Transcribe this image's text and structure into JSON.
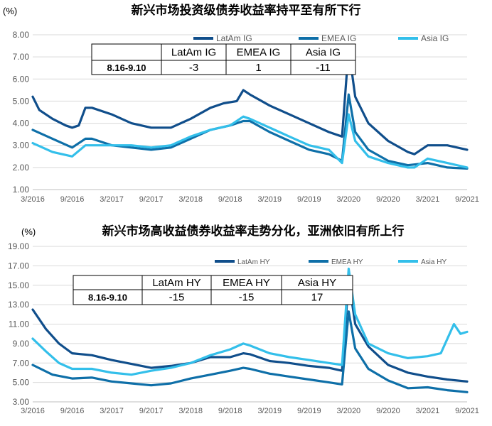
{
  "chart_data": [
    {
      "type": "line",
      "title": "新兴市场投资级债券收益率持平至有所下行",
      "unit_label": "(%)",
      "ylim": [
        1.0,
        8.0
      ],
      "yticks": [
        "8.00",
        "7.00",
        "6.00",
        "5.00",
        "4.00",
        "3.00",
        "2.00",
        "1.00"
      ],
      "xlim": [
        "2016-03",
        "2021-09"
      ],
      "xticks": [
        "3/2016",
        "9/2016",
        "3/2017",
        "9/2017",
        "3/2018",
        "9/2018",
        "3/2019",
        "9/2019",
        "3/2020",
        "9/2020",
        "3/2021",
        "9/2021"
      ],
      "grid": "horizontal",
      "legend": "top-right",
      "series": [
        {
          "name": "LatAm IG",
          "color": "#104E8B",
          "points": [
            [
              "2016-03",
              5.2
            ],
            [
              "2016-04",
              4.6
            ],
            [
              "2016-06",
              4.2
            ],
            [
              "2016-08",
              3.9
            ],
            [
              "2016-09",
              3.8
            ],
            [
              "2016-10",
              3.9
            ],
            [
              "2016-11",
              4.7
            ],
            [
              "2016-12",
              4.7
            ],
            [
              "2017-03",
              4.4
            ],
            [
              "2017-06",
              4.0
            ],
            [
              "2017-09",
              3.8
            ],
            [
              "2017-12",
              3.8
            ],
            [
              "2018-03",
              4.2
            ],
            [
              "2018-06",
              4.7
            ],
            [
              "2018-08",
              4.9
            ],
            [
              "2018-10",
              5.0
            ],
            [
              "2018-11",
              5.5
            ],
            [
              "2018-12",
              5.3
            ],
            [
              "2019-03",
              4.8
            ],
            [
              "2019-06",
              4.4
            ],
            [
              "2019-09",
              4.0
            ],
            [
              "2019-12",
              3.6
            ],
            [
              "2020-02",
              3.4
            ],
            [
              "2020-03",
              7.4
            ],
            [
              "2020-04",
              5.2
            ],
            [
              "2020-06",
              4.0
            ],
            [
              "2020-09",
              3.2
            ],
            [
              "2020-12",
              2.7
            ],
            [
              "2021-01",
              2.6
            ],
            [
              "2021-03",
              3.0
            ],
            [
              "2021-06",
              3.0
            ],
            [
              "2021-09",
              2.8
            ]
          ]
        },
        {
          "name": "EMEA IG",
          "color": "#0E6FA8",
          "points": [
            [
              "2016-03",
              3.7
            ],
            [
              "2016-06",
              3.3
            ],
            [
              "2016-09",
              2.9
            ],
            [
              "2016-11",
              3.3
            ],
            [
              "2016-12",
              3.3
            ],
            [
              "2017-03",
              3.0
            ],
            [
              "2017-06",
              2.9
            ],
            [
              "2017-09",
              2.8
            ],
            [
              "2017-12",
              2.9
            ],
            [
              "2018-03",
              3.3
            ],
            [
              "2018-06",
              3.7
            ],
            [
              "2018-09",
              3.9
            ],
            [
              "2018-11",
              4.1
            ],
            [
              "2018-12",
              4.1
            ],
            [
              "2019-03",
              3.6
            ],
            [
              "2019-06",
              3.2
            ],
            [
              "2019-09",
              2.8
            ],
            [
              "2019-12",
              2.6
            ],
            [
              "2020-02",
              2.3
            ],
            [
              "2020-03",
              5.3
            ],
            [
              "2020-04",
              3.6
            ],
            [
              "2020-06",
              2.8
            ],
            [
              "2020-09",
              2.3
            ],
            [
              "2020-12",
              2.1
            ],
            [
              "2021-03",
              2.2
            ],
            [
              "2021-06",
              2.0
            ],
            [
              "2021-09",
              1.95
            ]
          ]
        },
        {
          "name": "Asia IG",
          "color": "#33BFEA",
          "points": [
            [
              "2016-03",
              3.1
            ],
            [
              "2016-06",
              2.7
            ],
            [
              "2016-09",
              2.5
            ],
            [
              "2016-11",
              3.0
            ],
            [
              "2016-12",
              3.0
            ],
            [
              "2017-03",
              3.0
            ],
            [
              "2017-06",
              3.0
            ],
            [
              "2017-09",
              2.9
            ],
            [
              "2017-12",
              3.0
            ],
            [
              "2018-03",
              3.4
            ],
            [
              "2018-06",
              3.7
            ],
            [
              "2018-09",
              3.9
            ],
            [
              "2018-11",
              4.3
            ],
            [
              "2018-12",
              4.2
            ],
            [
              "2019-03",
              3.8
            ],
            [
              "2019-06",
              3.4
            ],
            [
              "2019-09",
              3.0
            ],
            [
              "2019-12",
              2.8
            ],
            [
              "2020-02",
              2.2
            ],
            [
              "2020-03",
              4.4
            ],
            [
              "2020-04",
              3.2
            ],
            [
              "2020-06",
              2.5
            ],
            [
              "2020-09",
              2.2
            ],
            [
              "2020-12",
              2.0
            ],
            [
              "2021-01",
              2.0
            ],
            [
              "2021-03",
              2.4
            ],
            [
              "2021-06",
              2.2
            ],
            [
              "2021-09",
              2.0
            ]
          ]
        }
      ],
      "table": {
        "headers": [
          "LatAm IG",
          "EMEA IG",
          "Asia IG"
        ],
        "row_label": "8.16-9.10",
        "values": [
          "-3",
          "1",
          "-11"
        ]
      }
    },
    {
      "type": "line",
      "title": "新兴市场高收益债券收益率走势分化，亚洲依旧有所上行",
      "unit_label": "(%)",
      "ylim": [
        3.0,
        19.0
      ],
      "yticks": [
        "19.00",
        "17.00",
        "15.00",
        "13.00",
        "11.00",
        "9.00",
        "7.00",
        "5.00",
        "3.00"
      ],
      "xlim": [
        "2016-03",
        "2021-09"
      ],
      "xticks": [
        "3/2016",
        "9/2016",
        "3/2017",
        "9/2017",
        "3/2018",
        "9/2018",
        "3/2019",
        "9/2019",
        "3/2020",
        "9/2020",
        "3/2021",
        "9/2021"
      ],
      "grid": "horizontal",
      "legend": "top-right",
      "series": [
        {
          "name": "LatAm HY",
          "color": "#104E8B",
          "points": [
            [
              "2016-03",
              12.5
            ],
            [
              "2016-05",
              10.5
            ],
            [
              "2016-07",
              9.0
            ],
            [
              "2016-09",
              8.0
            ],
            [
              "2016-12",
              7.8
            ],
            [
              "2017-03",
              7.3
            ],
            [
              "2017-06",
              6.9
            ],
            [
              "2017-09",
              6.5
            ],
            [
              "2017-12",
              6.7
            ],
            [
              "2018-03",
              7.0
            ],
            [
              "2018-06",
              7.6
            ],
            [
              "2018-09",
              7.6
            ],
            [
              "2018-11",
              8.0
            ],
            [
              "2018-12",
              7.9
            ],
            [
              "2019-03",
              7.2
            ],
            [
              "2019-06",
              7.0
            ],
            [
              "2019-09",
              6.7
            ],
            [
              "2019-12",
              6.5
            ],
            [
              "2020-02",
              6.2
            ],
            [
              "2020-03",
              15.6
            ],
            [
              "2020-04",
              11.0
            ],
            [
              "2020-06",
              8.7
            ],
            [
              "2020-09",
              6.8
            ],
            [
              "2020-12",
              6.0
            ],
            [
              "2021-03",
              5.6
            ],
            [
              "2021-06",
              5.3
            ],
            [
              "2021-09",
              5.1
            ]
          ]
        },
        {
          "name": "EMEA HY",
          "color": "#0E6FA8",
          "points": [
            [
              "2016-03",
              6.8
            ],
            [
              "2016-06",
              5.8
            ],
            [
              "2016-09",
              5.4
            ],
            [
              "2016-12",
              5.5
            ],
            [
              "2017-03",
              5.1
            ],
            [
              "2017-06",
              4.9
            ],
            [
              "2017-09",
              4.7
            ],
            [
              "2017-12",
              4.9
            ],
            [
              "2018-03",
              5.4
            ],
            [
              "2018-06",
              5.8
            ],
            [
              "2018-09",
              6.2
            ],
            [
              "2018-11",
              6.5
            ],
            [
              "2018-12",
              6.4
            ],
            [
              "2019-03",
              5.9
            ],
            [
              "2019-06",
              5.6
            ],
            [
              "2019-09",
              5.3
            ],
            [
              "2019-12",
              5.0
            ],
            [
              "2020-02",
              4.8
            ],
            [
              "2020-03",
              12.3
            ],
            [
              "2020-04",
              8.5
            ],
            [
              "2020-06",
              6.4
            ],
            [
              "2020-09",
              5.2
            ],
            [
              "2020-12",
              4.4
            ],
            [
              "2021-03",
              4.5
            ],
            [
              "2021-06",
              4.2
            ],
            [
              "2021-09",
              4.0
            ]
          ]
        },
        {
          "name": "Asia HY",
          "color": "#33BFEA",
          "points": [
            [
              "2016-03",
              9.5
            ],
            [
              "2016-05",
              8.2
            ],
            [
              "2016-07",
              7.0
            ],
            [
              "2016-09",
              6.4
            ],
            [
              "2016-12",
              6.4
            ],
            [
              "2017-03",
              6.0
            ],
            [
              "2017-06",
              5.8
            ],
            [
              "2017-09",
              6.2
            ],
            [
              "2017-12",
              6.5
            ],
            [
              "2018-03",
              7.0
            ],
            [
              "2018-06",
              7.8
            ],
            [
              "2018-09",
              8.4
            ],
            [
              "2018-11",
              9.0
            ],
            [
              "2018-12",
              8.8
            ],
            [
              "2019-03",
              8.0
            ],
            [
              "2019-06",
              7.6
            ],
            [
              "2019-09",
              7.3
            ],
            [
              "2019-12",
              7.0
            ],
            [
              "2020-02",
              6.8
            ],
            [
              "2020-03",
              16.7
            ],
            [
              "2020-04",
              12.0
            ],
            [
              "2020-06",
              9.0
            ],
            [
              "2020-09",
              8.0
            ],
            [
              "2020-12",
              7.5
            ],
            [
              "2021-03",
              7.7
            ],
            [
              "2021-05",
              8.0
            ],
            [
              "2021-07",
              11.0
            ],
            [
              "2021-08",
              10.0
            ],
            [
              "2021-09",
              10.2
            ]
          ]
        }
      ],
      "table": {
        "headers": [
          "LatAm HY",
          "EMEA HY",
          "Asia HY"
        ],
        "row_label": "8.16-9.10",
        "values": [
          "-15",
          "-15",
          "17"
        ]
      }
    }
  ]
}
